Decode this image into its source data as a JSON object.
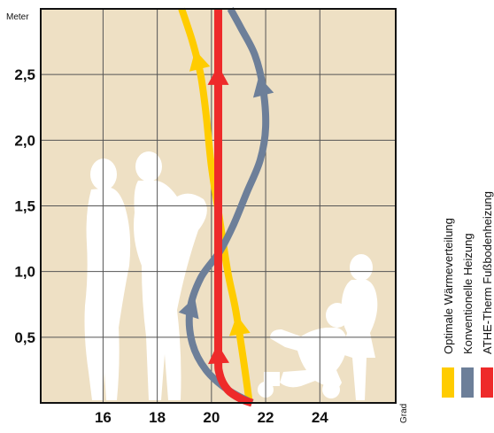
{
  "chart_data": {
    "type": "line",
    "ylabel": "Meter",
    "xlabel": "Grad",
    "xlim": [
      13.7,
      26.8
    ],
    "ylim": [
      0,
      3.0
    ],
    "x_ticks": [
      {
        "value": 16,
        "label": "16"
      },
      {
        "value": 18,
        "label": "18"
      },
      {
        "value": 20,
        "label": "20"
      },
      {
        "value": 22,
        "label": "22"
      },
      {
        "value": 24,
        "label": "24"
      }
    ],
    "y_ticks": [
      {
        "value": 0.5,
        "label": "0,5"
      },
      {
        "value": 1.0,
        "label": "1,0"
      },
      {
        "value": 1.5,
        "label": "1,5"
      },
      {
        "value": 2.0,
        "label": "2,0"
      },
      {
        "value": 2.5,
        "label": "2,5"
      }
    ],
    "grid": true,
    "background_color": "#eee0c4",
    "series": [
      {
        "name": "Optimale Wärmeverteilung",
        "color": "#ffcc00",
        "points": [
          [
            21.4,
            0.0
          ],
          [
            21.2,
            0.3
          ],
          [
            20.9,
            0.7
          ],
          [
            20.6,
            1.0
          ],
          [
            20.3,
            1.4
          ],
          [
            20.0,
            1.8
          ],
          [
            19.8,
            2.2
          ],
          [
            19.6,
            2.5
          ],
          [
            19.3,
            2.75
          ],
          [
            18.9,
            3.0
          ]
        ],
        "arrows": [
          [
            21.0,
            0.58
          ],
          [
            19.5,
            2.6
          ]
        ]
      },
      {
        "name": "Konventionelle Heizung",
        "color": "#6d7f99",
        "points": [
          [
            21.5,
            0.0
          ],
          [
            20.6,
            0.1
          ],
          [
            19.8,
            0.25
          ],
          [
            19.3,
            0.45
          ],
          [
            19.2,
            0.7
          ],
          [
            19.6,
            0.95
          ],
          [
            20.3,
            1.15
          ],
          [
            20.8,
            1.35
          ],
          [
            21.3,
            1.6
          ],
          [
            21.8,
            1.85
          ],
          [
            22.0,
            2.1
          ],
          [
            21.9,
            2.4
          ],
          [
            21.6,
            2.65
          ],
          [
            21.1,
            2.85
          ],
          [
            20.7,
            3.0
          ]
        ],
        "arrows": [
          [
            19.25,
            0.72
          ],
          [
            21.85,
            2.4
          ]
        ]
      },
      {
        "name": "ATHE-Therm Fußbodenheizung",
        "color": "#ee2a2a",
        "points": [
          [
            21.5,
            0.0
          ],
          [
            21.1,
            0.03
          ],
          [
            20.6,
            0.1
          ],
          [
            20.3,
            0.22
          ],
          [
            20.25,
            0.4
          ],
          [
            20.25,
            1.2
          ],
          [
            20.25,
            2.0
          ],
          [
            20.25,
            3.0
          ]
        ],
        "arrows": [
          [
            20.25,
            0.36
          ],
          [
            20.25,
            2.48
          ]
        ]
      }
    ],
    "legend": {
      "placement": "right",
      "items": [
        {
          "label": "Optimale Wärmeverteilung",
          "color": "#ffcc00"
        },
        {
          "label": "Konventionelle Heizung",
          "color": "#6d7f99"
        },
        {
          "label": "ATHE-Therm Fußbodenheizung",
          "color": "#ee2a2a"
        }
      ]
    }
  }
}
